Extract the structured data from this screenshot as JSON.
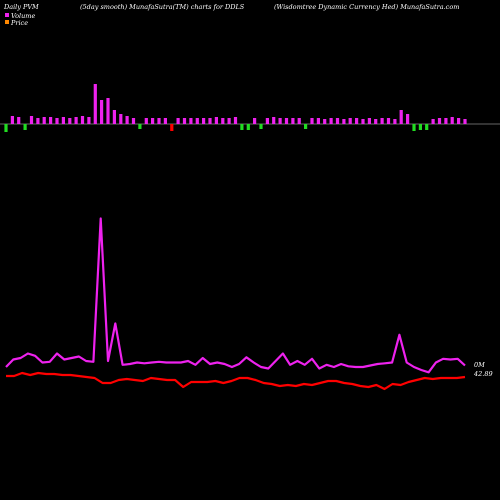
{
  "header": {
    "left": "Daily PVM",
    "center": "(5day smooth) MunafaSutra(TM) charts for DDLS",
    "right": "(Wisdomtree   Dynamic Currency Hed) MunafaSutra.com"
  },
  "legend": {
    "volume_label": "Volume",
    "volume_color": "#ee22ee",
    "price_label": "Price",
    "price_color": "#ff8800"
  },
  "chart_data": {
    "type": "line",
    "title": "(5day smooth) MunafaSutra(TM) charts for DDLS",
    "symbol": "DDLS",
    "colors": {
      "up_bar": "#ee22ee",
      "down_bar": "#ff0000",
      "green_bar": "#22dd22",
      "volume_line": "#ee22ee",
      "price_line": "#ff0000"
    },
    "volume_bars": [
      {
        "v": 8,
        "c": "g"
      },
      {
        "v": 8,
        "c": "m"
      },
      {
        "v": 7,
        "c": "m"
      },
      {
        "v": 6,
        "c": "g"
      },
      {
        "v": 8,
        "c": "m"
      },
      {
        "v": 6,
        "c": "m"
      },
      {
        "v": 7,
        "c": "m"
      },
      {
        "v": 7,
        "c": "m"
      },
      {
        "v": 6,
        "c": "m"
      },
      {
        "v": 7,
        "c": "m"
      },
      {
        "v": 6,
        "c": "m"
      },
      {
        "v": 7,
        "c": "m"
      },
      {
        "v": 8,
        "c": "m"
      },
      {
        "v": 7,
        "c": "m"
      },
      {
        "v": 40,
        "c": "m"
      },
      {
        "v": 24,
        "c": "m"
      },
      {
        "v": 26,
        "c": "m"
      },
      {
        "v": 14,
        "c": "m"
      },
      {
        "v": 10,
        "c": "m"
      },
      {
        "v": 8,
        "c": "m"
      },
      {
        "v": 6,
        "c": "m"
      },
      {
        "v": 5,
        "c": "g"
      },
      {
        "v": 6,
        "c": "m"
      },
      {
        "v": 6,
        "c": "m"
      },
      {
        "v": 6,
        "c": "m"
      },
      {
        "v": 6,
        "c": "m"
      },
      {
        "v": 7,
        "c": "r"
      },
      {
        "v": 6,
        "c": "m"
      },
      {
        "v": 6,
        "c": "m"
      },
      {
        "v": 6,
        "c": "m"
      },
      {
        "v": 6,
        "c": "m"
      },
      {
        "v": 6,
        "c": "m"
      },
      {
        "v": 6,
        "c": "m"
      },
      {
        "v": 7,
        "c": "m"
      },
      {
        "v": 6,
        "c": "m"
      },
      {
        "v": 6,
        "c": "m"
      },
      {
        "v": 7,
        "c": "m"
      },
      {
        "v": 6,
        "c": "g"
      },
      {
        "v": 6,
        "c": "g"
      },
      {
        "v": 6,
        "c": "m"
      },
      {
        "v": 5,
        "c": "g"
      },
      {
        "v": 6,
        "c": "m"
      },
      {
        "v": 7,
        "c": "m"
      },
      {
        "v": 6,
        "c": "m"
      },
      {
        "v": 6,
        "c": "m"
      },
      {
        "v": 6,
        "c": "m"
      },
      {
        "v": 6,
        "c": "m"
      },
      {
        "v": 5,
        "c": "g"
      },
      {
        "v": 6,
        "c": "m"
      },
      {
        "v": 6,
        "c": "m"
      },
      {
        "v": 5,
        "c": "m"
      },
      {
        "v": 6,
        "c": "m"
      },
      {
        "v": 6,
        "c": "m"
      },
      {
        "v": 5,
        "c": "m"
      },
      {
        "v": 6,
        "c": "m"
      },
      {
        "v": 6,
        "c": "m"
      },
      {
        "v": 5,
        "c": "m"
      },
      {
        "v": 6,
        "c": "m"
      },
      {
        "v": 5,
        "c": "m"
      },
      {
        "v": 6,
        "c": "m"
      },
      {
        "v": 6,
        "c": "m"
      },
      {
        "v": 5,
        "c": "m"
      },
      {
        "v": 14,
        "c": "m"
      },
      {
        "v": 10,
        "c": "m"
      },
      {
        "v": 7,
        "c": "g"
      },
      {
        "v": 6,
        "c": "g"
      },
      {
        "v": 6,
        "c": "g"
      },
      {
        "v": 5,
        "c": "m"
      },
      {
        "v": 6,
        "c": "m"
      },
      {
        "v": 6,
        "c": "m"
      },
      {
        "v": 7,
        "c": "m"
      },
      {
        "v": 6,
        "c": "m"
      },
      {
        "v": 5,
        "c": "m"
      }
    ],
    "volume_line": [
      12,
      22,
      24,
      30,
      27,
      18,
      19,
      30,
      22,
      24,
      26,
      20,
      19,
      210,
      20,
      70,
      15,
      16,
      18,
      17,
      18,
      19,
      18,
      18,
      18,
      20,
      15,
      24,
      16,
      18,
      16,
      12,
      16,
      25,
      18,
      12,
      10,
      20,
      30,
      15,
      20,
      15,
      23,
      10,
      15,
      12,
      16,
      13,
      12,
      12,
      14,
      16,
      17,
      18,
      55,
      18,
      12,
      8,
      5,
      18,
      23,
      22,
      23,
      14
    ],
    "price_line": [
      5,
      5,
      8,
      6,
      8,
      7,
      7,
      6,
      6,
      5,
      4,
      3,
      -2,
      -2,
      1,
      2,
      1,
      0,
      3,
      2,
      1,
      1,
      -6,
      -1,
      -1,
      -1,
      0,
      -2,
      0,
      3,
      3,
      1,
      -2,
      -3,
      -5,
      -4,
      -5,
      -3,
      -4,
      -2,
      0,
      0,
      -2,
      -3,
      -5,
      -6,
      -4,
      -8,
      -3,
      -4,
      -1,
      1,
      3,
      2,
      3,
      3,
      3,
      4
    ],
    "end_labels": {
      "volume": "0M",
      "price": "42.89"
    }
  }
}
